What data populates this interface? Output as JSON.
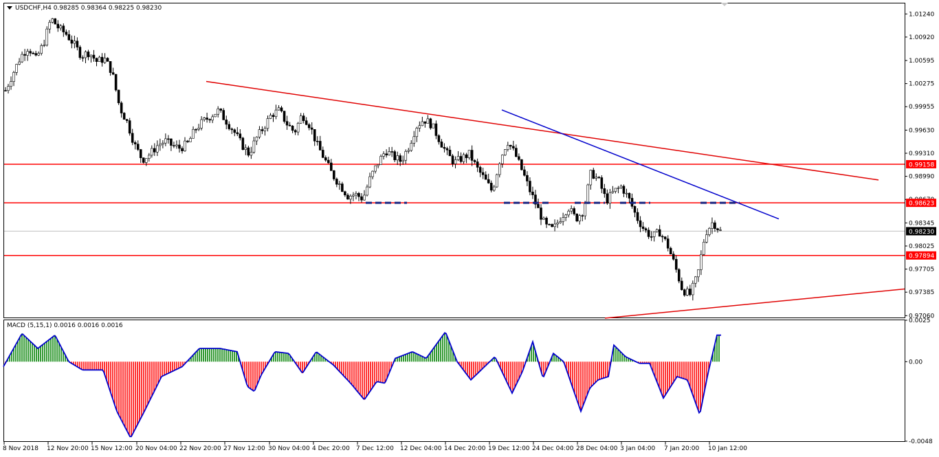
{
  "header": {
    "symbol": "USDCHF,H4",
    "open": "0.98285",
    "high": "0.98364",
    "low": "0.98225",
    "close": "0.98230"
  },
  "macd_header": {
    "name": "MACD (5,15,1)",
    "v1": "0.0016",
    "v2": "0.0016",
    "v3": "0.0016"
  },
  "chart_data": [
    {
      "type": "candlestick",
      "title": "USDCHF,H4",
      "ylim": [
        0.97025,
        1.01395
      ],
      "price_ticks": [
        "1.01240",
        "1.00920",
        "1.00595",
        "1.00275",
        "0.99955",
        "0.99630",
        "0.99310",
        "0.98990",
        "0.98670",
        "0.98345",
        "0.98025",
        "0.97705",
        "0.97385",
        "0.97060"
      ],
      "x_labels": [
        "8 Nov 2018",
        "12 Nov 20:00",
        "15 Nov 12:00",
        "20 Nov 04:00",
        "22 Nov 20:00",
        "27 Nov 12:00",
        "30 Nov 04:00",
        "4 Dec 20:00",
        "7 Dec 12:00",
        "12 Dec 04:00",
        "14 Dec 20:00",
        "19 Dec 12:00",
        "24 Dec 04:00",
        "28 Dec 04:00",
        "3 Jan 04:00",
        "7 Jan 20:00",
        "10 Jan 12:00"
      ],
      "current_price": "0.98230",
      "horizontal_levels": [
        "0.99158",
        "0.98623",
        "0.97894"
      ],
      "colors": {
        "level": "#ff0000",
        "trend_red": "#e00000",
        "trend_blue": "#0000cc",
        "candle": "#000000",
        "label_bg": "#ff0000",
        "current_bg": "#000000"
      },
      "ohlc_close_path": [
        1.0018,
        1.0042,
        1.0065,
        1.0078,
        1.0061,
        1.0083,
        1.0118,
        1.0104,
        1.0096,
        1.0082,
        1.0066,
        1.0071,
        1.0058,
        1.0062,
        1.0044,
        0.9995,
        0.9974,
        0.9942,
        0.9922,
        0.993,
        0.9942,
        0.9948,
        0.9941,
        0.9938,
        0.9945,
        0.9965,
        0.9975,
        0.9983,
        0.999,
        0.9976,
        0.9962,
        0.9944,
        0.993,
        0.9952,
        0.9968,
        0.9985,
        0.999,
        0.9972,
        0.996,
        0.9985,
        0.997,
        0.9942,
        0.9922,
        0.9901,
        0.9887,
        0.9872,
        0.9874,
        0.9868,
        0.9898,
        0.9918,
        0.9935,
        0.9926,
        0.992,
        0.994,
        0.9968,
        0.9978,
        0.9971,
        0.9951,
        0.9931,
        0.9918,
        0.9924,
        0.993,
        0.991,
        0.9895,
        0.9878,
        0.9922,
        0.9948,
        0.993,
        0.9905,
        0.9878,
        0.9854,
        0.983,
        0.9825,
        0.9842,
        0.9856,
        0.984,
        0.9852,
        0.9905,
        0.9893,
        0.9865,
        0.9878,
        0.9885,
        0.9867,
        0.9842,
        0.9825,
        0.9815,
        0.9822,
        0.9805,
        0.9776,
        0.9742,
        0.9735,
        0.9762,
        0.982,
        0.9836,
        0.9823
      ],
      "macd_ylim": [
        -0.0048,
        0.0025
      ],
      "macd_ticks": [
        "0.0025",
        "0.00",
        "-0.0048"
      ],
      "macd_colors": {
        "positive": "#008000",
        "negative": "#ff0000",
        "signal": "#0000cc"
      }
    }
  ]
}
